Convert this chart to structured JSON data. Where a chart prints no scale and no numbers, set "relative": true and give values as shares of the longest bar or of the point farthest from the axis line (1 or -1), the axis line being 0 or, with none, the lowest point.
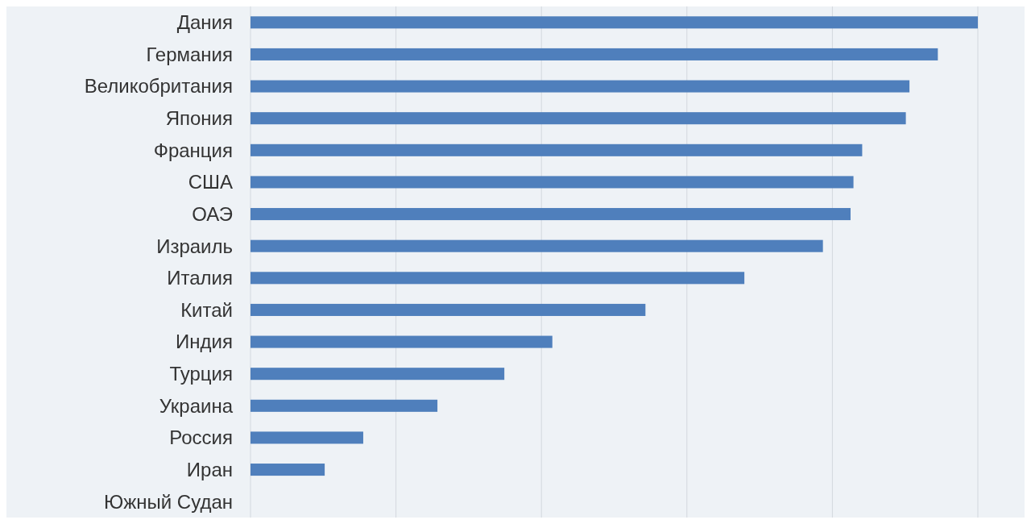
{
  "chart_data": {
    "type": "bar",
    "orientation": "horizontal",
    "relative": true,
    "grid": "x",
    "color": "#4f7fbc",
    "categories": [
      "Дания",
      "Германия",
      "Великобритания",
      "Япония",
      "Франция",
      "США",
      "ОАЭ",
      "Израиль",
      "Италия",
      "Китай",
      "Индия",
      "Турция",
      "Украина",
      "Россия",
      "Иран",
      "Южный Судан"
    ],
    "values": [
      1,
      0.945,
      0.906,
      0.901,
      0.841,
      0.829,
      0.825,
      0.787,
      0.679,
      0.543,
      0.415,
      0.349,
      0.257,
      0.155,
      0.102,
      0
    ]
  }
}
